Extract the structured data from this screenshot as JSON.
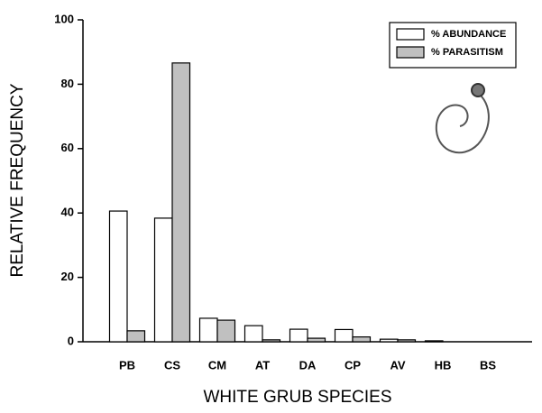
{
  "chart_data": {
    "type": "bar",
    "x_label": "WHITE GRUB SPECIES",
    "y_label": "RELATIVE FREQUENCY",
    "categories": [
      "PB",
      "CS",
      "CM",
      "AT",
      "DA",
      "CP",
      "AV",
      "HB",
      "BS"
    ],
    "series": [
      {
        "name": "% ABUNDANCE",
        "color": "#ffffff",
        "values": [
          40.6,
          38.4,
          7.3,
          5.0,
          3.9,
          3.8,
          0.8,
          0.3,
          0
        ]
      },
      {
        "name": "% PARASITISM",
        "color": "#c0c0c0",
        "values": [
          3.4,
          86.6,
          6.7,
          0.6,
          1.1,
          1.5,
          0.6,
          0,
          0
        ]
      }
    ],
    "ylim": [
      0,
      100
    ],
    "yticks": [
      0,
      20,
      40,
      60,
      80,
      100
    ],
    "legend": "upper right"
  }
}
